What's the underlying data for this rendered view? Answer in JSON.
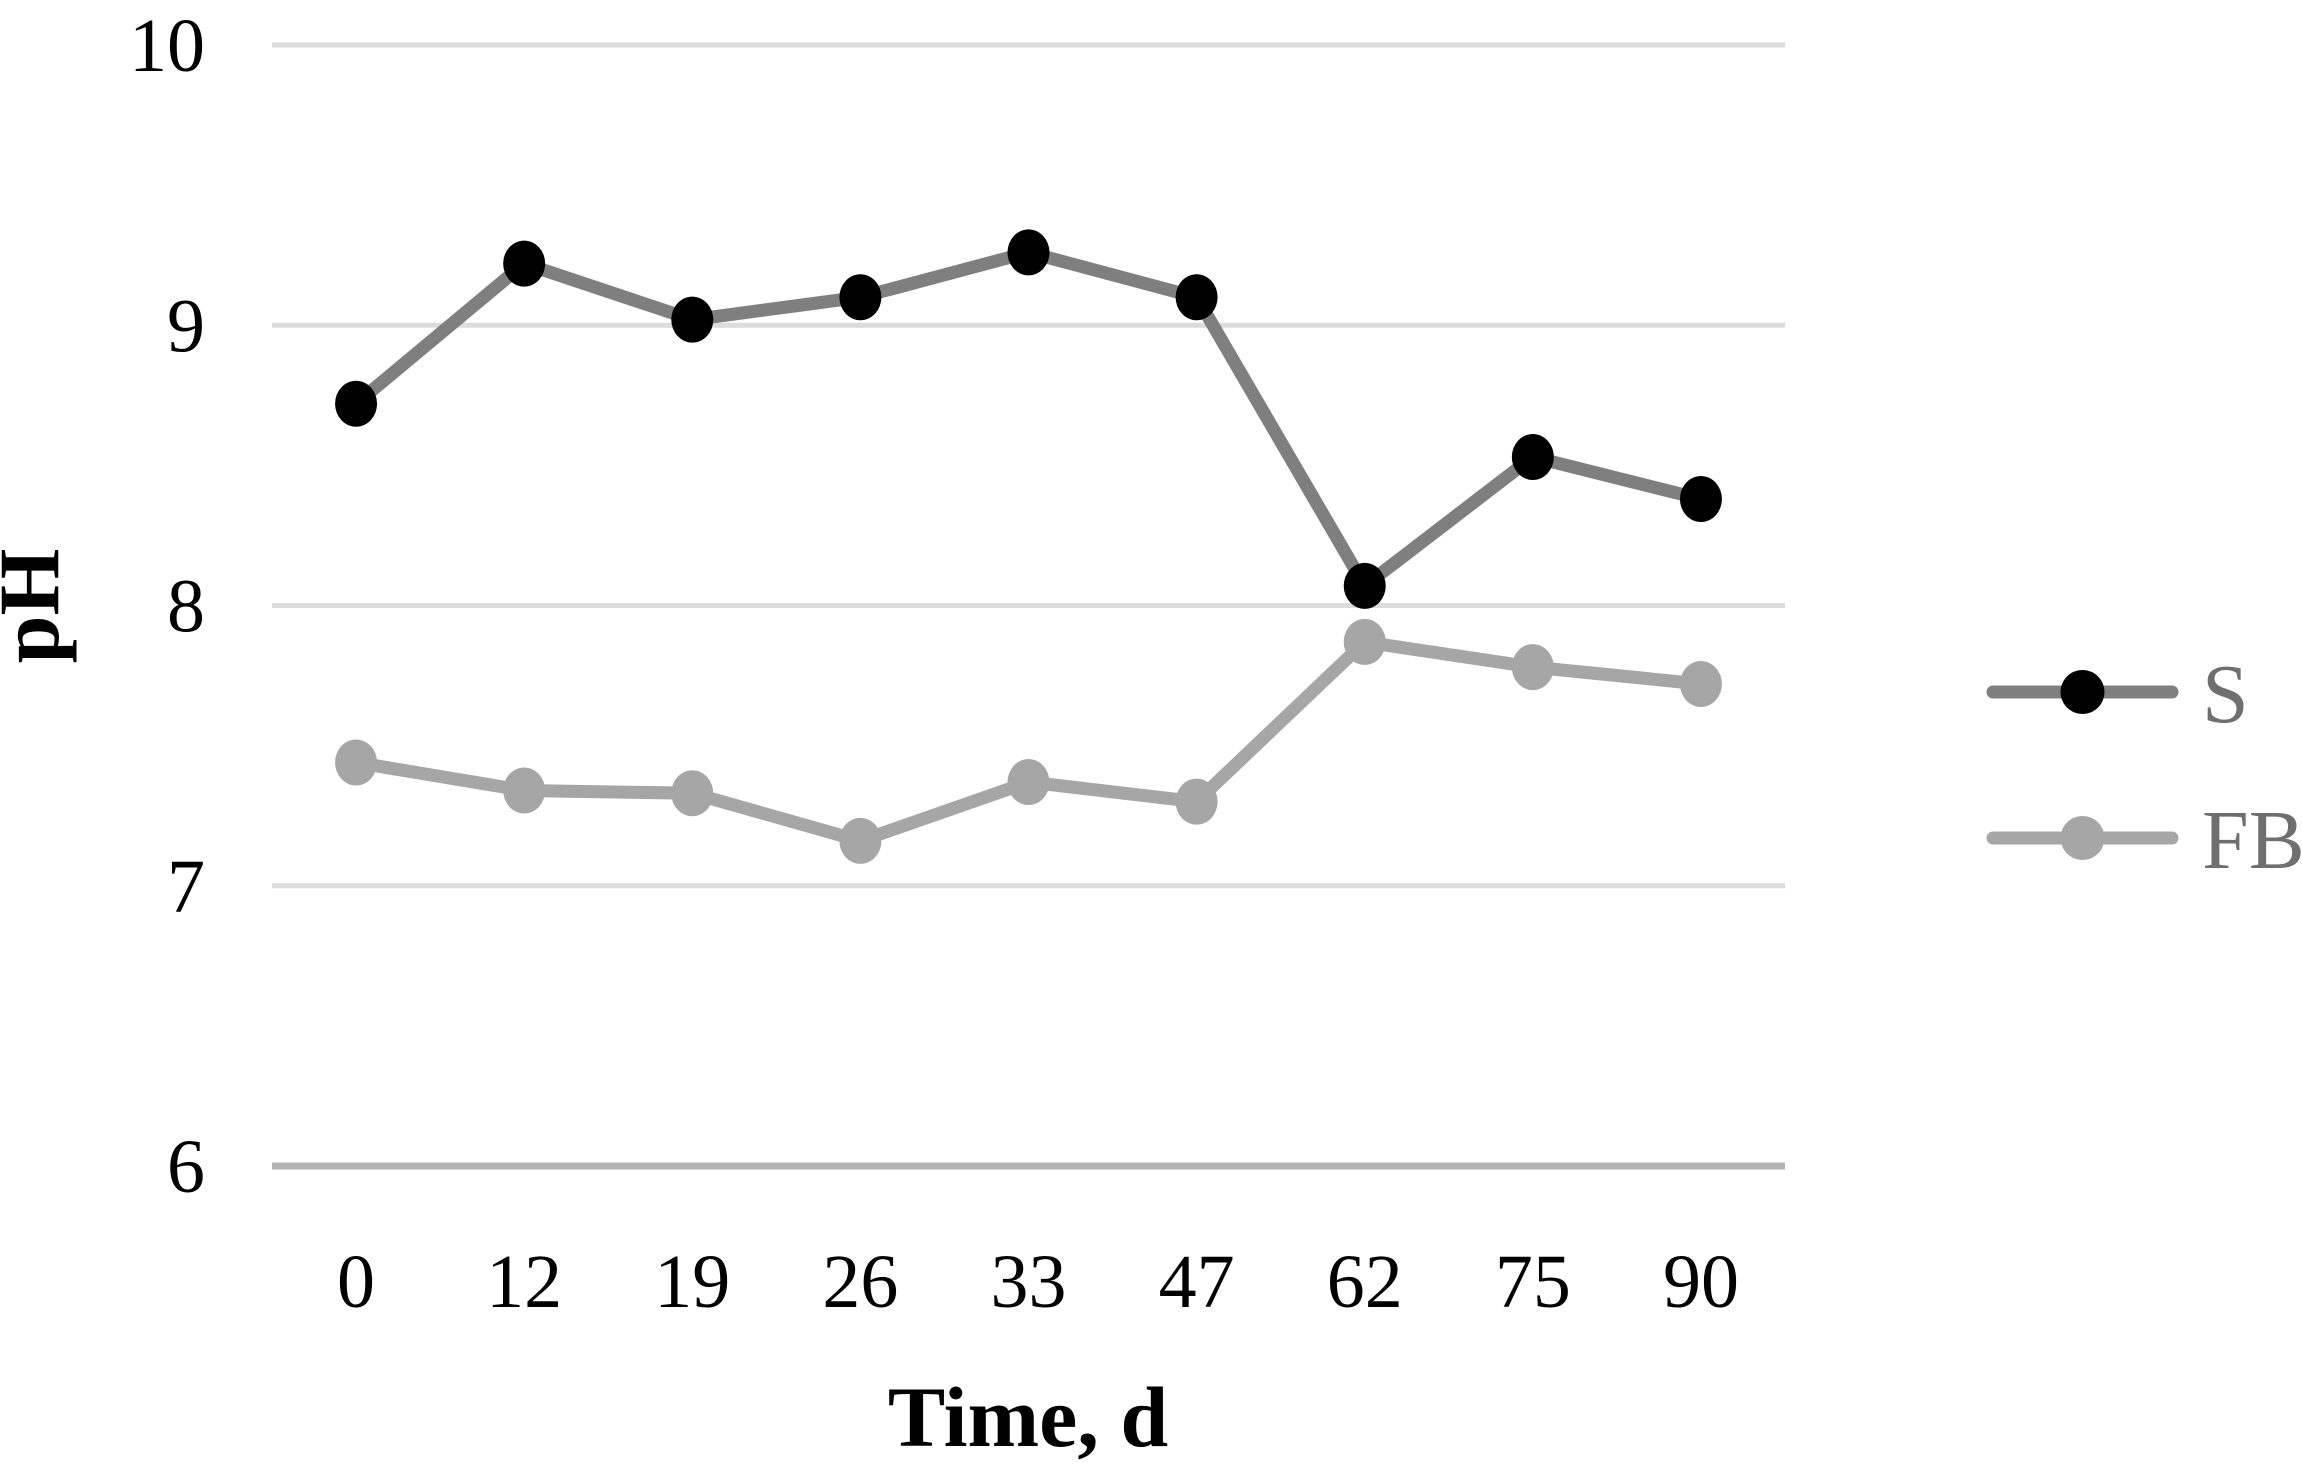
{
  "chart_data": {
    "type": "line",
    "title": "",
    "xlabel": "Time, d",
    "ylabel": "pH",
    "categories": [
      "0",
      "12",
      "19",
      "26",
      "33",
      "47",
      "62",
      "75",
      "90"
    ],
    "series": [
      {
        "name": "S",
        "values": [
          8.72,
          9.22,
          9.02,
          9.1,
          9.26,
          9.1,
          8.07,
          8.53,
          8.38
        ],
        "line_color": "#7f7f7f",
        "marker_color": "#000000"
      },
      {
        "name": "FB",
        "values": [
          7.44,
          7.34,
          7.33,
          7.16,
          7.37,
          7.3,
          7.87,
          7.78,
          7.72
        ],
        "line_color": "#a6a6a6",
        "marker_color": "#a6a6a6"
      }
    ],
    "y_ticks": [
      6,
      7,
      8,
      9,
      10
    ],
    "ylim": [
      6,
      10
    ],
    "grid": true,
    "legend_position": "right",
    "colors": {
      "gridline": "#dcdcdc",
      "baseline_gridline": "#b3b3b3",
      "tick_label": "#000000",
      "axis_title": "#000000",
      "legend_label": "#6f6f6f",
      "background": "#ffffff"
    }
  }
}
